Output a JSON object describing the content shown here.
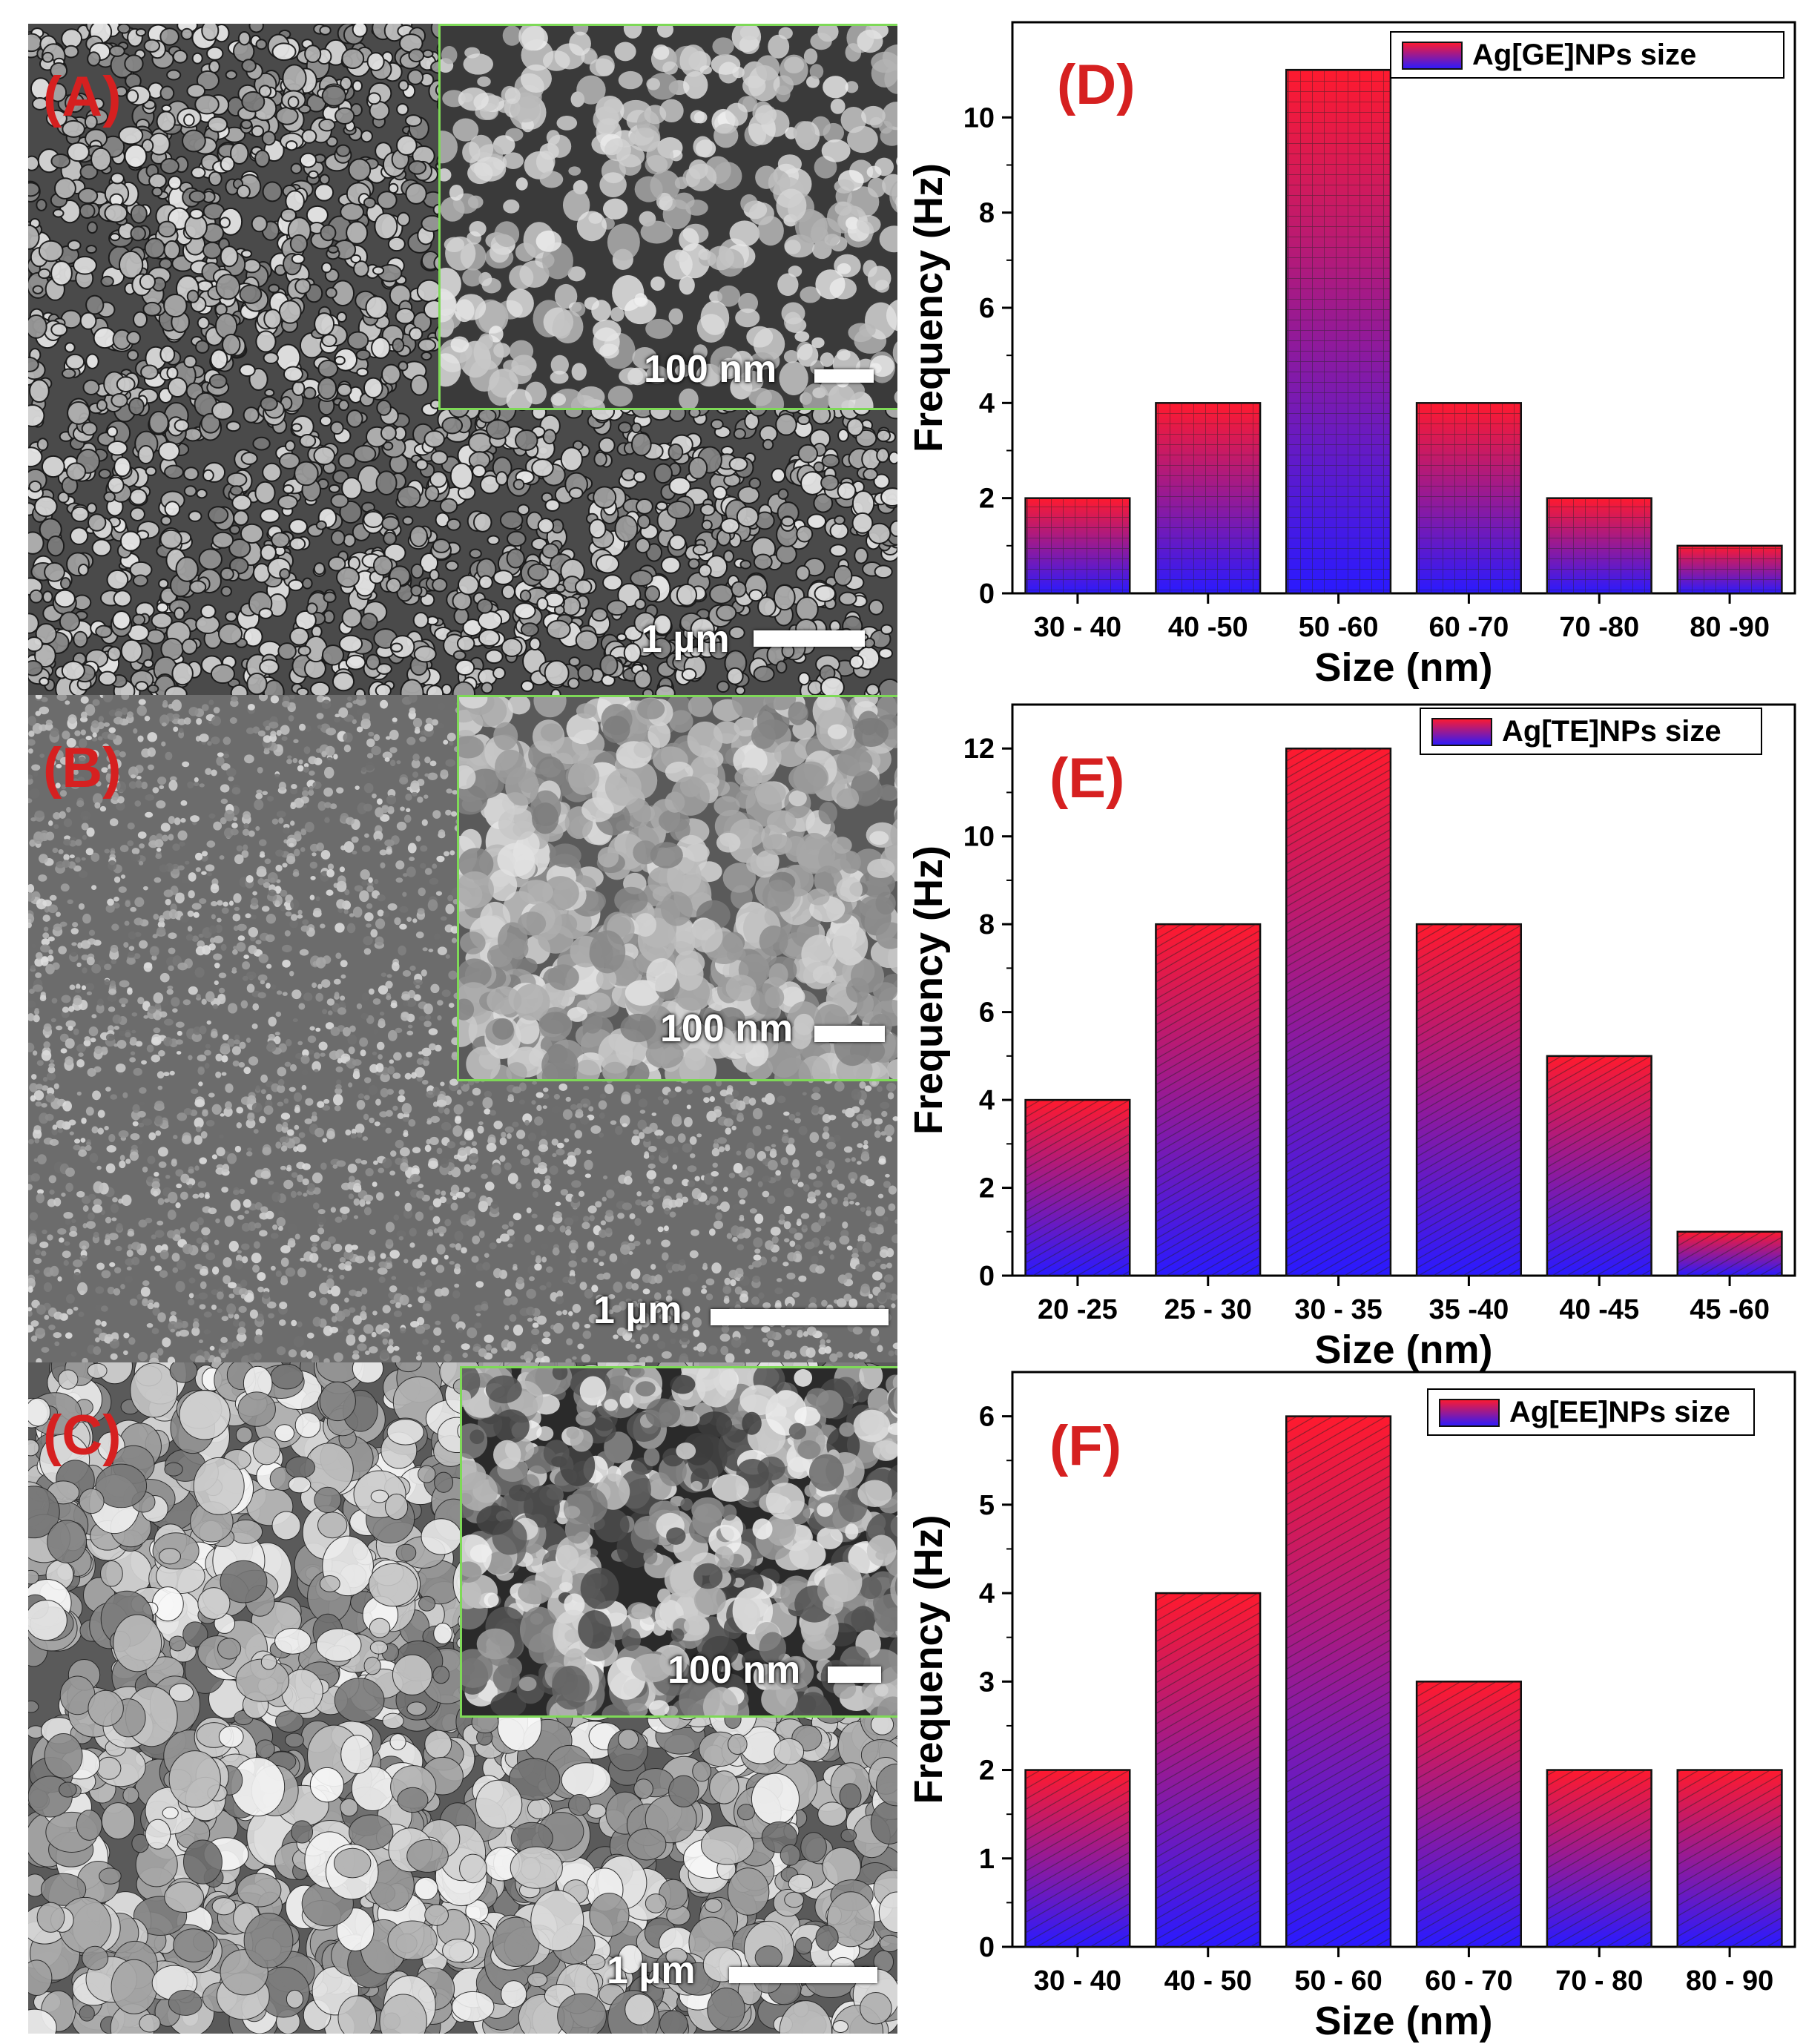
{
  "sem_panels": [
    {
      "id": "A",
      "label": "(A)",
      "scale": "1 µm",
      "inset_scale": "100 nm"
    },
    {
      "id": "B",
      "label": "(B)",
      "scale": "1 µm",
      "inset_scale": "100 nm"
    },
    {
      "id": "C",
      "label": "(C)",
      "scale": "1 µm",
      "inset_scale": "100 nm"
    }
  ],
  "colors": {
    "bar_top": "#ff1a2e",
    "bar_bottom": "#2a1aff",
    "label_red": "#d62020"
  },
  "chart_data": [
    {
      "type": "bar",
      "panel": "(D)",
      "legend": "Ag[GE]NPs size",
      "xlabel": "Size (nm)",
      "ylabel": "Frequency (Hz)",
      "categories": [
        "30 - 40",
        "40 -50",
        "50 -60",
        "60 -70",
        "70 -80",
        "80 -90"
      ],
      "series": [
        {
          "name": "Ag[GE]NPs size",
          "values": [
            2,
            4,
            11,
            4,
            2,
            1
          ]
        }
      ],
      "ylim": [
        0,
        12
      ],
      "yticks": [
        0,
        2,
        4,
        6,
        8,
        10
      ],
      "legend_position": "top-right",
      "pattern": "grid"
    },
    {
      "type": "bar",
      "panel": "(E)",
      "legend": "Ag[TE]NPs size",
      "xlabel": "Size (nm)",
      "ylabel": "Frequency (Hz)",
      "categories": [
        "20 -25",
        "25 - 30",
        "30 - 35",
        "35 -40",
        "40 -45",
        "45 -60"
      ],
      "series": [
        {
          "name": "Ag[TE]NPs size",
          "values": [
            4,
            8,
            12,
            8,
            5,
            1
          ]
        }
      ],
      "ylim": [
        0,
        13
      ],
      "yticks": [
        0,
        2,
        4,
        6,
        8,
        10,
        12
      ],
      "legend_position": "top-right",
      "pattern": "diagonal"
    },
    {
      "type": "bar",
      "panel": "(F)",
      "legend": "Ag[EE]NPs size",
      "xlabel": "Size (nm)",
      "ylabel": "Frequency (Hz)",
      "categories": [
        "30 - 40",
        "40 - 50",
        "50 - 60",
        "60 - 70",
        "70 - 80",
        "80 - 90"
      ],
      "series": [
        {
          "name": "Ag[EE]NPs size",
          "values": [
            2,
            4,
            6,
            3,
            2,
            2
          ]
        }
      ],
      "ylim": [
        0,
        6.5
      ],
      "yticks": [
        0,
        1,
        2,
        3,
        4,
        5,
        6
      ],
      "legend_position": "top-right",
      "pattern": "diagonal-fine"
    }
  ]
}
